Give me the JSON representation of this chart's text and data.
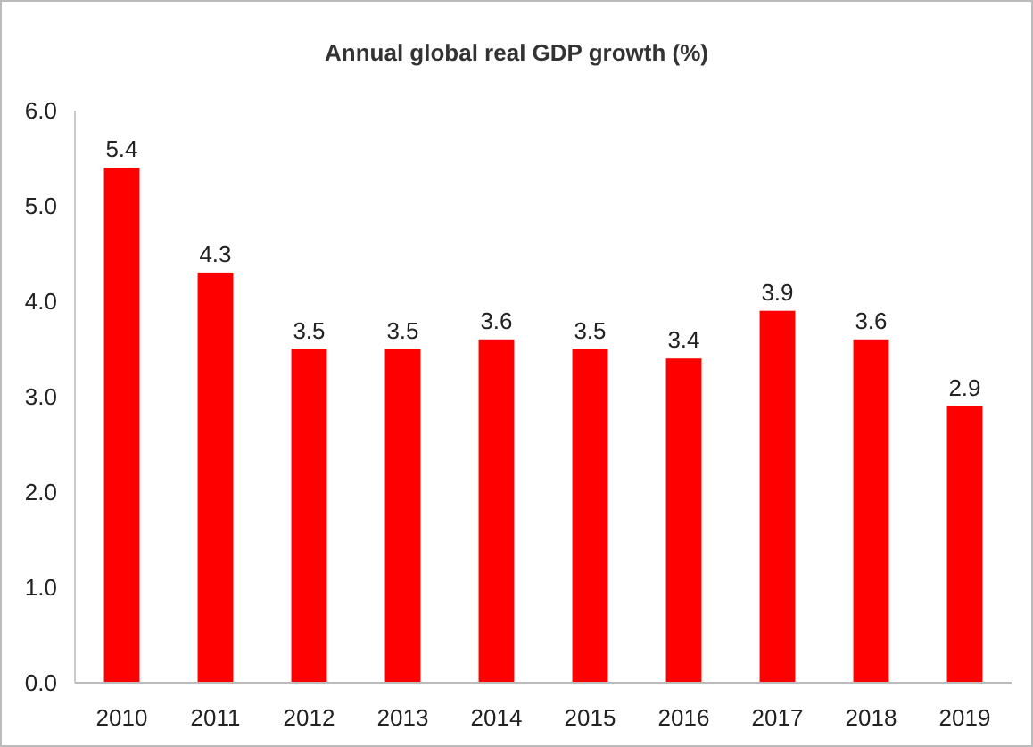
{
  "chart_data": {
    "type": "bar",
    "title": "Annual global real GDP growth (%)",
    "categories": [
      "2010",
      "2011",
      "2012",
      "2013",
      "2014",
      "2015",
      "2016",
      "2017",
      "2018",
      "2019"
    ],
    "values": [
      5.4,
      4.3,
      3.5,
      3.5,
      3.6,
      3.5,
      3.4,
      3.9,
      3.6,
      2.9
    ],
    "color": "#ff0000",
    "data_labels": true,
    "grid": false,
    "ylim": [
      0,
      6
    ],
    "yticks": [
      {
        "value": 0,
        "label": "0.0"
      },
      {
        "value": 1,
        "label": "1.0"
      },
      {
        "value": 2,
        "label": "2.0"
      },
      {
        "value": 3,
        "label": "3.0"
      },
      {
        "value": 4,
        "label": "4.0"
      },
      {
        "value": 5,
        "label": "5.0"
      },
      {
        "value": 6,
        "label": "6.0"
      }
    ]
  }
}
